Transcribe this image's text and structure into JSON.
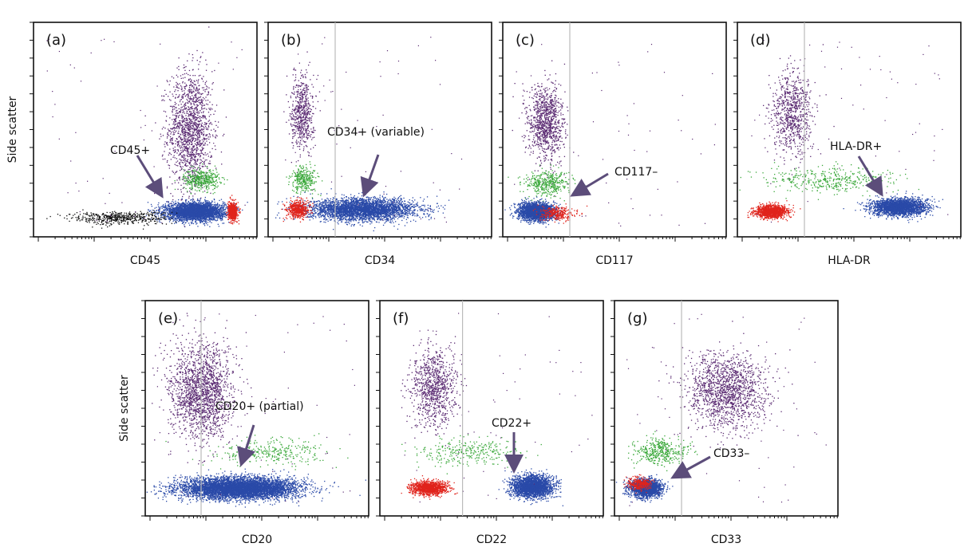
{
  "colors": {
    "dots_purple": "#5a2a72",
    "dots_green": "#3aa83a",
    "dots_blue": "#2a4aa8",
    "dots_red": "#e0241c",
    "dots_black": "#111111",
    "arrow": "#5c4d7a",
    "gate_line": "#bbbbbb"
  },
  "chart_data": [
    {
      "type": "scatter",
      "panel": "(a)",
      "xlabel": "CD45",
      "ylabel": "Side scatter",
      "x_scale": "log",
      "gate": null,
      "annotation": "CD45+",
      "populations": [
        {
          "color": "purple",
          "x": 0.7,
          "y": 0.5,
          "w": 0.1,
          "h": 0.28,
          "count": 1500
        },
        {
          "color": "green",
          "x": 0.75,
          "y": 0.27,
          "w": 0.08,
          "h": 0.05,
          "count": 400
        },
        {
          "color": "blue",
          "x": 0.72,
          "y": 0.12,
          "w": 0.13,
          "h": 0.04,
          "count": 3500
        },
        {
          "color": "black",
          "x": 0.38,
          "y": 0.09,
          "w": 0.22,
          "h": 0.03,
          "count": 500
        },
        {
          "color": "red",
          "x": 0.89,
          "y": 0.12,
          "w": 0.02,
          "h": 0.04,
          "count": 700
        }
      ]
    },
    {
      "type": "scatter",
      "panel": "(b)",
      "xlabel": "CD34",
      "ylabel": "",
      "x_scale": "log",
      "gate": 0.3,
      "annotation": "CD34+ (variable)",
      "populations": [
        {
          "color": "purple",
          "x": 0.15,
          "y": 0.58,
          "w": 0.05,
          "h": 0.18,
          "count": 600
        },
        {
          "color": "green",
          "x": 0.16,
          "y": 0.27,
          "w": 0.06,
          "h": 0.06,
          "count": 300
        },
        {
          "color": "blue",
          "x": 0.42,
          "y": 0.13,
          "w": 0.24,
          "h": 0.05,
          "count": 3500
        },
        {
          "color": "red",
          "x": 0.13,
          "y": 0.13,
          "w": 0.05,
          "h": 0.04,
          "count": 500
        }
      ]
    },
    {
      "type": "scatter",
      "panel": "(c)",
      "xlabel": "CD117",
      "ylabel": "",
      "x_scale": "log",
      "gate": 0.3,
      "annotation": "CD117–",
      "populations": [
        {
          "color": "purple",
          "x": 0.19,
          "y": 0.53,
          "w": 0.08,
          "h": 0.18,
          "count": 1000
        },
        {
          "color": "green",
          "x": 0.2,
          "y": 0.25,
          "w": 0.1,
          "h": 0.06,
          "count": 400
        },
        {
          "color": "blue",
          "x": 0.15,
          "y": 0.12,
          "w": 0.08,
          "h": 0.04,
          "count": 2500
        },
        {
          "color": "red",
          "x": 0.24,
          "y": 0.11,
          "w": 0.08,
          "h": 0.03,
          "count": 300
        }
      ]
    },
    {
      "type": "scatter",
      "panel": "(d)",
      "xlabel": "HLA-DR",
      "ylabel": "",
      "x_scale": "log",
      "gate": 0.3,
      "annotation": "HLA-DR+",
      "populations": [
        {
          "color": "purple",
          "x": 0.24,
          "y": 0.58,
          "w": 0.09,
          "h": 0.2,
          "count": 800
        },
        {
          "color": "green",
          "x": 0.4,
          "y": 0.27,
          "w": 0.3,
          "h": 0.06,
          "count": 400
        },
        {
          "color": "blue",
          "x": 0.72,
          "y": 0.14,
          "w": 0.12,
          "h": 0.04,
          "count": 2500
        },
        {
          "color": "red",
          "x": 0.15,
          "y": 0.12,
          "w": 0.07,
          "h": 0.03,
          "count": 1200
        }
      ]
    },
    {
      "type": "scatter",
      "panel": "(e)",
      "xlabel": "CD20",
      "ylabel": "Side scatter",
      "x_scale": "log",
      "gate": 0.25,
      "annotation": "CD20+ (partial)",
      "populations": [
        {
          "color": "purple",
          "x": 0.25,
          "y": 0.58,
          "w": 0.14,
          "h": 0.22,
          "count": 1800
        },
        {
          "color": "green",
          "x": 0.55,
          "y": 0.3,
          "w": 0.25,
          "h": 0.06,
          "count": 300
        },
        {
          "color": "blue",
          "x": 0.42,
          "y": 0.13,
          "w": 0.26,
          "h": 0.05,
          "count": 6000
        }
      ]
    },
    {
      "type": "scatter",
      "panel": "(f)",
      "xlabel": "CD22",
      "ylabel": "",
      "x_scale": "log",
      "gate": 0.37,
      "annotation": "CD22+",
      "populations": [
        {
          "color": "purple",
          "x": 0.24,
          "y": 0.6,
          "w": 0.1,
          "h": 0.18,
          "count": 900
        },
        {
          "color": "green",
          "x": 0.4,
          "y": 0.3,
          "w": 0.25,
          "h": 0.06,
          "count": 300
        },
        {
          "color": "blue",
          "x": 0.68,
          "y": 0.14,
          "w": 0.09,
          "h": 0.05,
          "count": 2500
        },
        {
          "color": "red",
          "x": 0.22,
          "y": 0.13,
          "w": 0.08,
          "h": 0.03,
          "count": 1200
        }
      ]
    },
    {
      "type": "scatter",
      "panel": "(g)",
      "xlabel": "CD33",
      "ylabel": "",
      "x_scale": "log",
      "gate": 0.3,
      "annotation": "CD33–",
      "populations": [
        {
          "color": "purple",
          "x": 0.5,
          "y": 0.58,
          "w": 0.18,
          "h": 0.18,
          "count": 1500
        },
        {
          "color": "green",
          "x": 0.2,
          "y": 0.3,
          "w": 0.12,
          "h": 0.06,
          "count": 400
        },
        {
          "color": "blue",
          "x": 0.14,
          "y": 0.13,
          "w": 0.07,
          "h": 0.04,
          "count": 2000
        },
        {
          "color": "red",
          "x": 0.11,
          "y": 0.15,
          "w": 0.05,
          "h": 0.03,
          "count": 300
        }
      ]
    }
  ]
}
